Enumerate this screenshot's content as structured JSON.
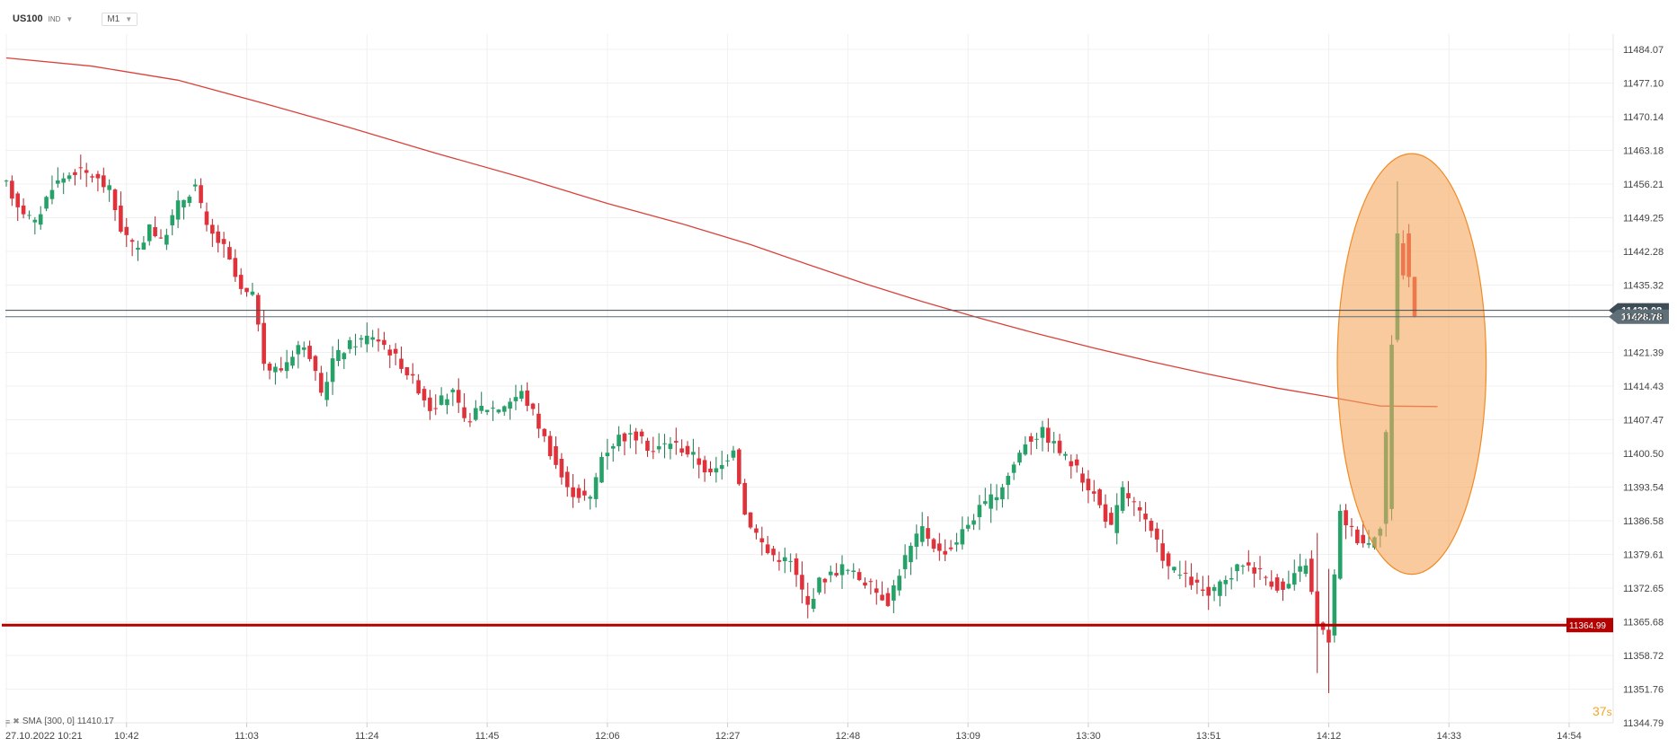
{
  "header": {
    "symbol": "US100",
    "market": "IND",
    "timeframe": "M1"
  },
  "indicator": {
    "name": "SMA",
    "params": "[300, 0]",
    "value": "11410.17"
  },
  "countdown": {
    "value": "37",
    "unit": "s"
  },
  "chart_data": {
    "type": "candlestick",
    "y_ticks": [
      "11484.07",
      "11477.10",
      "11470.14",
      "11463.18",
      "11456.21",
      "11449.25",
      "11442.28",
      "11435.32",
      "11428.78",
      "11421.39",
      "11414.43",
      "11407.47",
      "11400.50",
      "11393.54",
      "11386.58",
      "11379.61",
      "11372.65",
      "11365.68",
      "11358.72",
      "11351.76",
      "11344.79"
    ],
    "ylim": [
      11344.79,
      11484.07
    ],
    "x_labels": [
      "27.10.2022  10:21",
      "10:42",
      "11:03",
      "11:24",
      "11:45",
      "12:06",
      "12:27",
      "12:48",
      "13:09",
      "13:30",
      "13:51",
      "14:12",
      "14:33",
      "14:54"
    ],
    "x_label_minutes": [
      0,
      21,
      42,
      63,
      84,
      105,
      126,
      147,
      168,
      189,
      210,
      231,
      252,
      273
    ],
    "support_line": {
      "value": 11364.99,
      "label": "11364.99",
      "color": "#b30000"
    },
    "price_lines": [
      {
        "value": 11430.1,
        "label": "11430.08",
        "color": "#3d4c56"
      },
      {
        "value": 11428.78,
        "label": "11428.78",
        "color": "#5f6f78"
      }
    ],
    "sma": {
      "name": "SMA",
      "color": "#d9423a",
      "points": [
        [
          0,
          11482.3
        ],
        [
          15,
          11480.6
        ],
        [
          30,
          11477.7
        ],
        [
          45,
          11472.9
        ],
        [
          60,
          11467.9
        ],
        [
          75,
          11462.6
        ],
        [
          90,
          11457.6
        ],
        [
          105,
          11452.2
        ],
        [
          118,
          11448.0
        ],
        [
          130,
          11443.7
        ],
        [
          140,
          11439.6
        ],
        [
          150,
          11435.6
        ],
        [
          160,
          11431.9
        ],
        [
          170,
          11428.5
        ],
        [
          180,
          11425.3
        ],
        [
          190,
          11422.3
        ],
        [
          200,
          11419.5
        ],
        [
          210,
          11416.9
        ],
        [
          222,
          11414.0
        ],
        [
          230,
          11412.4
        ],
        [
          240,
          11410.3
        ],
        [
          250,
          11410.2
        ]
      ]
    },
    "highlight": {
      "center_minute": 245.5,
      "center_value": 11419.0,
      "radius_minutes": 13.0,
      "radius_value": 43.5,
      "color": "#f5a65b"
    },
    "candles_seed": [
      [
        0,
        11456
      ],
      [
        2,
        11452
      ],
      [
        5,
        11448
      ],
      [
        8,
        11456
      ],
      [
        12,
        11459
      ],
      [
        15,
        11458
      ],
      [
        18,
        11455
      ],
      [
        20,
        11447
      ],
      [
        23,
        11442
      ],
      [
        25,
        11448
      ],
      [
        27,
        11444
      ],
      [
        30,
        11452
      ],
      [
        33,
        11456
      ],
      [
        35,
        11447
      ],
      [
        38,
        11443
      ],
      [
        41,
        11434
      ],
      [
        43,
        11433
      ],
      [
        44,
        11428
      ],
      [
        45,
        11418
      ],
      [
        48,
        11418
      ],
      [
        51,
        11423
      ],
      [
        53,
        11421
      ],
      [
        55,
        11412
      ],
      [
        57,
        11420
      ],
      [
        60,
        11423
      ],
      [
        64,
        11425
      ],
      [
        66,
        11423
      ],
      [
        69,
        11419
      ],
      [
        72,
        11414
      ],
      [
        74,
        11410
      ],
      [
        78,
        11413
      ],
      [
        80,
        11407
      ],
      [
        83,
        11410
      ],
      [
        86,
        11410
      ],
      [
        90,
        11413
      ],
      [
        92,
        11409
      ],
      [
        95,
        11401
      ],
      [
        98,
        11393
      ],
      [
        102,
        11391
      ],
      [
        104,
        11400
      ],
      [
        107,
        11404
      ],
      [
        110,
        11404
      ],
      [
        113,
        11401
      ],
      [
        116,
        11403
      ],
      [
        120,
        11400
      ],
      [
        123,
        11396
      ],
      [
        125,
        11398
      ],
      [
        127,
        11402
      ],
      [
        129,
        11388
      ],
      [
        133,
        11380
      ],
      [
        137,
        11378
      ],
      [
        140,
        11369
      ],
      [
        142,
        11374
      ],
      [
        146,
        11377
      ],
      [
        150,
        11374
      ],
      [
        154,
        11370
      ],
      [
        157,
        11379
      ],
      [
        160,
        11385
      ],
      [
        163,
        11380
      ],
      [
        165,
        11381
      ],
      [
        168,
        11386
      ],
      [
        170,
        11389
      ],
      [
        173,
        11392
      ],
      [
        175,
        11396
      ],
      [
        178,
        11403
      ],
      [
        181,
        11405
      ],
      [
        184,
        11401
      ],
      [
        187,
        11397
      ],
      [
        190,
        11392
      ],
      [
        193,
        11385
      ],
      [
        195,
        11393
      ],
      [
        197,
        11390
      ],
      [
        200,
        11384
      ],
      [
        203,
        11377
      ],
      [
        207,
        11374
      ],
      [
        210,
        11371
      ],
      [
        213,
        11374
      ],
      [
        216,
        11378
      ],
      [
        219,
        11376
      ],
      [
        223,
        11372
      ],
      [
        227,
        11378
      ],
      [
        229,
        11365
      ],
      [
        231,
        11362
      ],
      [
        233,
        11388
      ],
      [
        236,
        11383
      ],
      [
        238,
        11382
      ],
      [
        240,
        11386
      ],
      [
        242,
        11424
      ],
      [
        243,
        11443
      ],
      [
        245,
        11432
      ],
      [
        246,
        11428.78
      ]
    ]
  }
}
